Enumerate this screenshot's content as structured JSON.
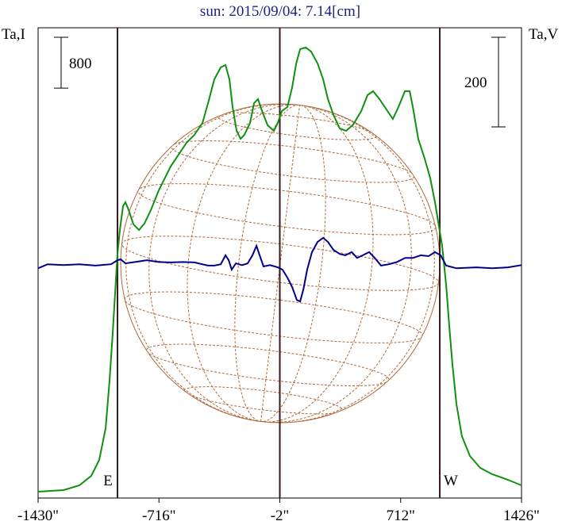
{
  "chart_data": {
    "type": "line",
    "title": "sun: 2015/09/04: 7.14[cm]",
    "xlim": [
      -1430,
      1426
    ],
    "xticks": [
      {
        "value": -1430,
        "label": "-1430\""
      },
      {
        "value": -716,
        "label": "-716\""
      },
      {
        "value": -2,
        "label": "-2\""
      },
      {
        "value": 712,
        "label": "712\""
      },
      {
        "value": 1426,
        "label": "1426\""
      }
    ],
    "ylim": [
      0,
      7400
    ],
    "y2lim": [
      -515,
      535
    ],
    "y_scale_bar": 800,
    "y2_scale_bar": 200,
    "center_line": -2,
    "limbs": [
      {
        "x": -961,
        "label": "E"
      },
      {
        "x": 943,
        "label": "W"
      }
    ],
    "series": [
      {
        "name": "Ta,I",
        "color": "#109010",
        "x": [
          -1430,
          -1280,
          -1186,
          -1116,
          -1069,
          -1031,
          -1008,
          -989,
          -975,
          -961,
          -947,
          -928,
          -914,
          -895,
          -867,
          -834,
          -802,
          -764,
          -717,
          -647,
          -600,
          -553,
          -506,
          -459,
          -426,
          -389,
          -351,
          -323,
          -300,
          -281,
          -257,
          -234,
          -211,
          -178,
          -154,
          -131,
          -107,
          -74,
          -37,
          -14,
          10,
          43,
          71,
          95,
          118,
          151,
          183,
          221,
          254,
          282,
          315,
          352,
          390,
          432,
          479,
          516,
          549,
          587,
          634,
          666,
          699,
          737,
          765,
          784,
          816,
          854,
          887,
          915,
          938,
          957,
          981,
          999,
          1018,
          1042,
          1074,
          1121,
          1182,
          1253,
          1346,
          1426
        ],
        "values": [
          100,
          125,
          200,
          349,
          599,
          1098,
          1847,
          2596,
          3220,
          3844,
          4218,
          4593,
          4655,
          4530,
          4306,
          4218,
          4318,
          4530,
          4842,
          5217,
          5404,
          5591,
          5716,
          5903,
          6215,
          6589,
          6777,
          6814,
          6589,
          6153,
          5778,
          5653,
          5716,
          5903,
          6215,
          6277,
          6090,
          5866,
          5778,
          5903,
          6090,
          6153,
          6465,
          6839,
          7064,
          7089,
          7026,
          6839,
          6589,
          6277,
          6028,
          5816,
          5778,
          5878,
          6090,
          6340,
          6402,
          6277,
          6090,
          5965,
          6153,
          6402,
          6402,
          6153,
          5653,
          5341,
          5029,
          4655,
          4281,
          3969,
          3345,
          2721,
          2097,
          1473,
          973,
          661,
          474,
          374,
          287,
          200
        ]
      },
      {
        "name": "Ta,V",
        "color": "#00008b",
        "axis": "y2",
        "x": [
          -1430,
          -1374,
          -1280,
          -1186,
          -1092,
          -999,
          -961,
          -942,
          -914,
          -858,
          -787,
          -717,
          -647,
          -576,
          -506,
          -426,
          -389,
          -351,
          -323,
          -304,
          -286,
          -262,
          -225,
          -192,
          -164,
          -140,
          -121,
          -98,
          -60,
          -14,
          14,
          43,
          71,
          99,
          118,
          137,
          160,
          188,
          221,
          254,
          282,
          315,
          352,
          385,
          423,
          455,
          488,
          526,
          559,
          596,
          643,
          690,
          737,
          784,
          831,
          877,
          915,
          948,
          981,
          1042,
          1159,
          1253,
          1346,
          1426
        ],
        "values": [
          -2,
          7,
          5,
          7,
          4,
          7,
          16,
          18,
          9,
          12,
          16,
          12,
          11,
          12,
          11,
          4,
          4,
          7,
          27,
          16,
          -5,
          9,
          5,
          9,
          27,
          48,
          27,
          2,
          5,
          0,
          -5,
          -23,
          -44,
          -73,
          -76,
          -50,
          -5,
          34,
          57,
          66,
          57,
          39,
          30,
          27,
          34,
          21,
          27,
          34,
          21,
          4,
          7,
          12,
          21,
          21,
          27,
          25,
          34,
          27,
          4,
          -2,
          0,
          -2,
          0,
          5
        ]
      }
    ]
  }
}
